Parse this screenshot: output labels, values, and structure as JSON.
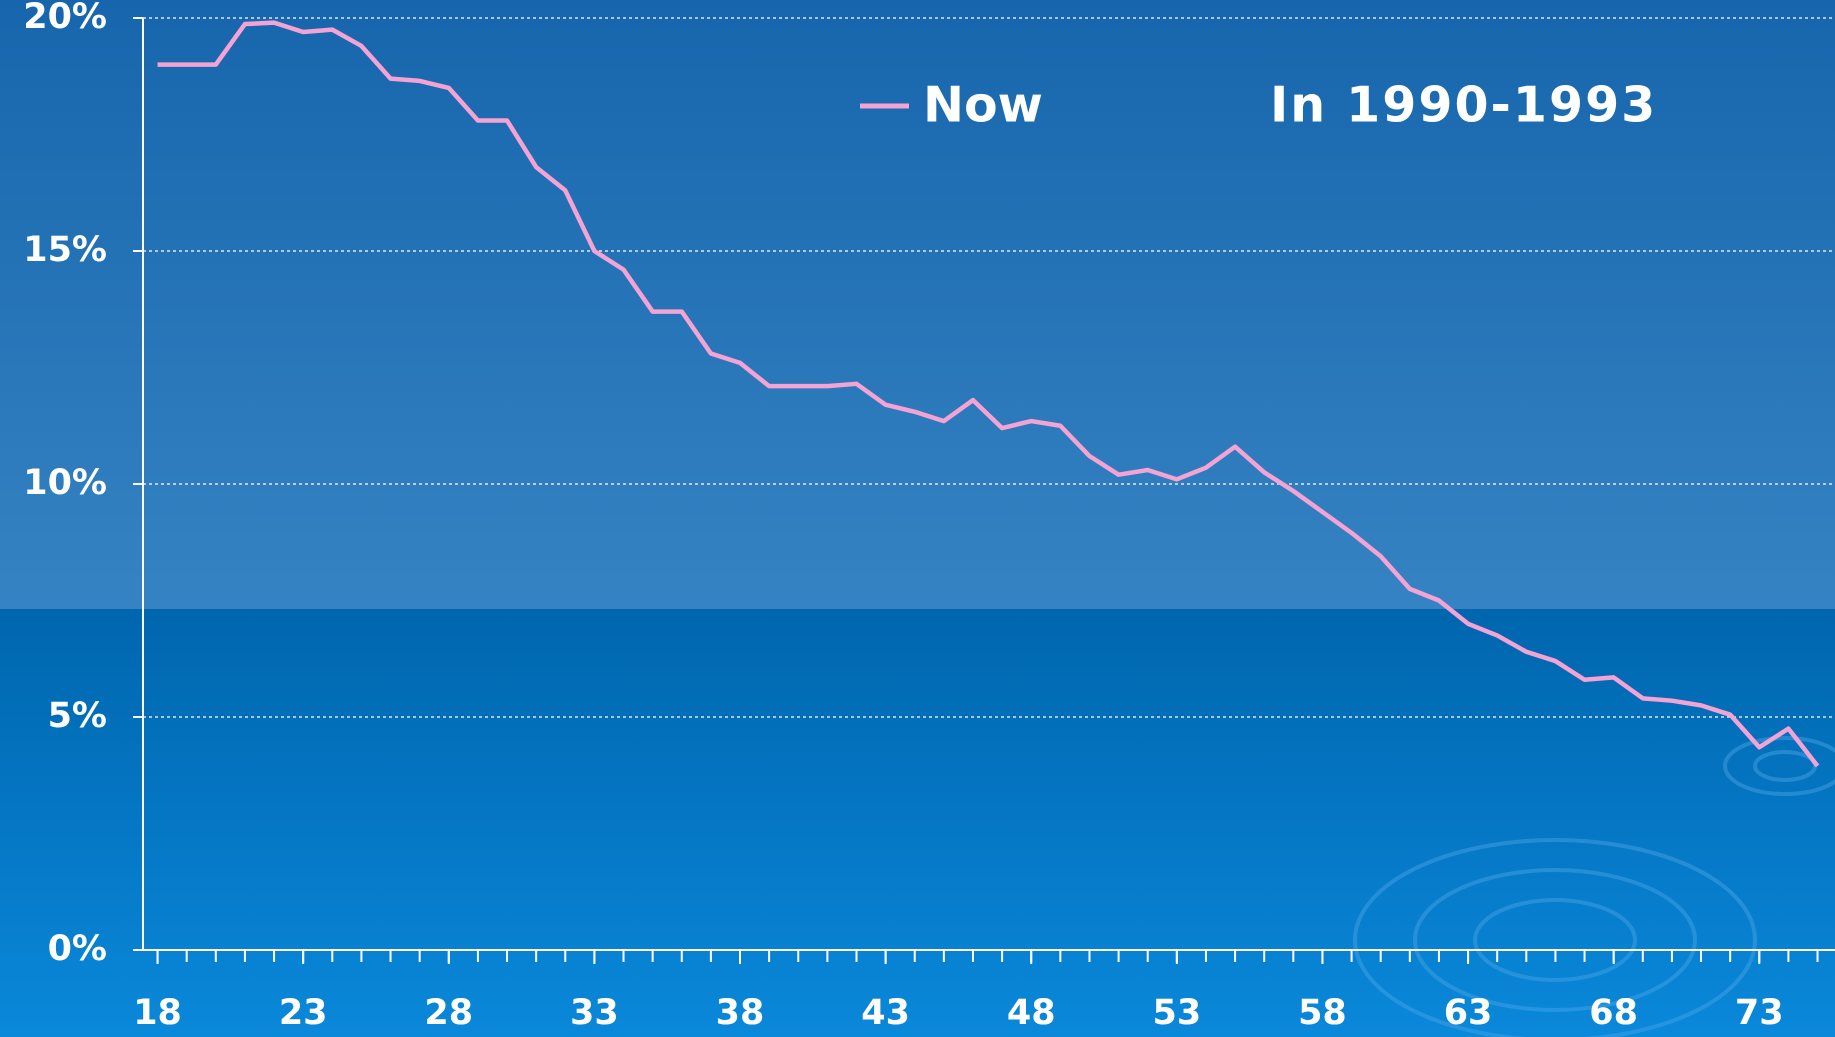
{
  "chart_data": {
    "type": "line",
    "x": [
      18,
      19,
      20,
      21,
      22,
      23,
      24,
      25,
      26,
      27,
      28,
      29,
      30,
      31,
      32,
      33,
      34,
      35,
      36,
      37,
      38,
      39,
      40,
      41,
      42,
      43,
      44,
      45,
      46,
      47,
      48,
      49,
      50,
      51,
      52,
      53,
      54,
      55,
      56,
      57,
      58,
      59,
      60,
      61,
      62,
      63,
      64,
      65,
      66,
      67,
      68,
      69,
      70,
      71,
      72,
      73,
      74,
      75
    ],
    "series": [
      {
        "name": "Now",
        "color": "#f4a3d3",
        "values": [
          19.0,
          19.0,
          19.0,
          19.87,
          19.9,
          19.7,
          19.75,
          19.4,
          18.7,
          18.65,
          18.5,
          17.8,
          17.8,
          16.8,
          16.3,
          15.0,
          14.6,
          13.7,
          13.7,
          12.8,
          12.6,
          12.1,
          12.1,
          12.1,
          12.15,
          11.7,
          11.55,
          11.35,
          11.8,
          11.2,
          11.35,
          11.25,
          10.6,
          10.2,
          10.3,
          10.1,
          10.35,
          10.8,
          10.25,
          9.85,
          9.4,
          8.95,
          8.45,
          7.75,
          7.5,
          7.0,
          6.75,
          6.4,
          6.2,
          5.8,
          5.85,
          5.4,
          5.35,
          5.25,
          5.05,
          4.35,
          4.75,
          3.95
        ]
      }
    ],
    "annotation": "In 1990-1993",
    "xlim": [
      17.5,
      75.6
    ],
    "xticks": [
      18,
      23,
      28,
      33,
      38,
      43,
      48,
      53,
      58,
      63,
      68,
      73
    ],
    "ylim": [
      0,
      20
    ],
    "yticks": [
      {
        "value": 0,
        "label": "0%"
      },
      {
        "value": 5,
        "label": "5%"
      },
      {
        "value": 10,
        "label": "10%"
      },
      {
        "value": 15,
        "label": "15%"
      },
      {
        "value": 20,
        "label": "20%"
      }
    ],
    "grid": true
  }
}
